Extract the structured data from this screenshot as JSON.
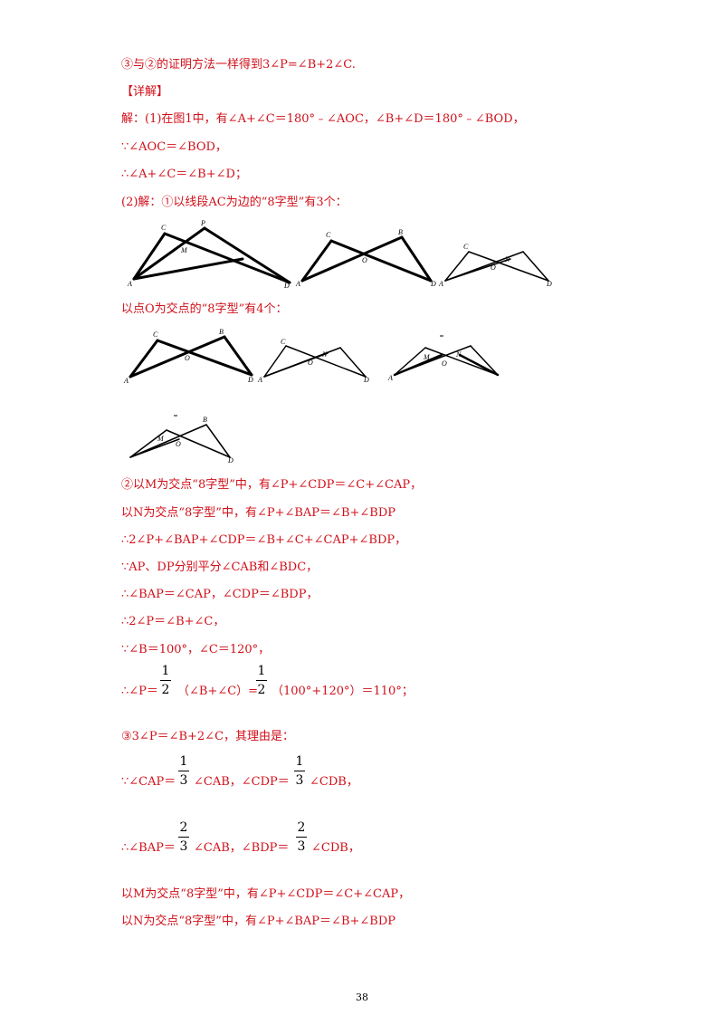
{
  "lines": {
    "l01": "③与②的证明方法一样得到3∠P=∠B+2∠C.",
    "l02": "【详解】",
    "l03": "解：(1)在图1中，有∠A+∠C＝180°﹣∠AOC，∠B+∠D＝180°﹣∠BOD，",
    "l04": "∵∠AOC＝∠BOD，",
    "l05": "∴∠A+∠C＝∠B+∠D；",
    "l06": "(2)解：①以线段AC为边的“8字型”有3个：",
    "l07": "以点O为交点的“8字型”有4个：",
    "l08": "②以M为交点“8字型”中，有∠P+∠CDP＝∠C+∠CAP，",
    "l09": "以N为交点“8字型”中，有∠P+∠BAP＝∠B+∠BDP",
    "l10": "∴2∠P+∠BAP+∠CDP＝∠B+∠C+∠CAP+∠BDP，",
    "l11": "∵AP、DP分别平分∠CAB和∠BDC，",
    "l12": "∴∠BAP＝∠CAP，∠CDP＝∠BDP，",
    "l13": "∴2∠P＝∠B+∠C，",
    "l14": "∵∠B＝100°，∠C＝120°，",
    "l15a": "∴∠P＝",
    "l15b": "（∠B+∠C）=",
    "l15c": "（100°+120°）＝110°；",
    "l16": "③3∠P＝∠B+2∠C，其理由是：",
    "l17a": "∵∠CAP＝",
    "l17b": "∠CAB，∠CDP＝",
    "l17c": "∠CDB，",
    "l18a": "∴∠BAP＝",
    "l18b": "∠CAB，∠BDP＝",
    "l18c": "∠CDB，",
    "l19": "以M为交点“8字型”中，有∠P+∠CDP＝∠C+∠CAP，",
    "l20": "以N为交点“8字型”中，有∠P+∠BAP＝∠B+∠BDP"
  },
  "fractions": {
    "half": {
      "num": "1",
      "den": "2"
    },
    "third": {
      "num": "1",
      "den": "3"
    },
    "two_thirds": {
      "num": "2",
      "den": "3"
    }
  },
  "figure_labels": {
    "A": "A",
    "B": "B",
    "C": "C",
    "D": "D",
    "M": "M",
    "N": "N",
    "O": "O",
    "P": "P"
  },
  "page_number": "38",
  "colors": {
    "text_red": "#d0101a",
    "ink": "#000000"
  }
}
